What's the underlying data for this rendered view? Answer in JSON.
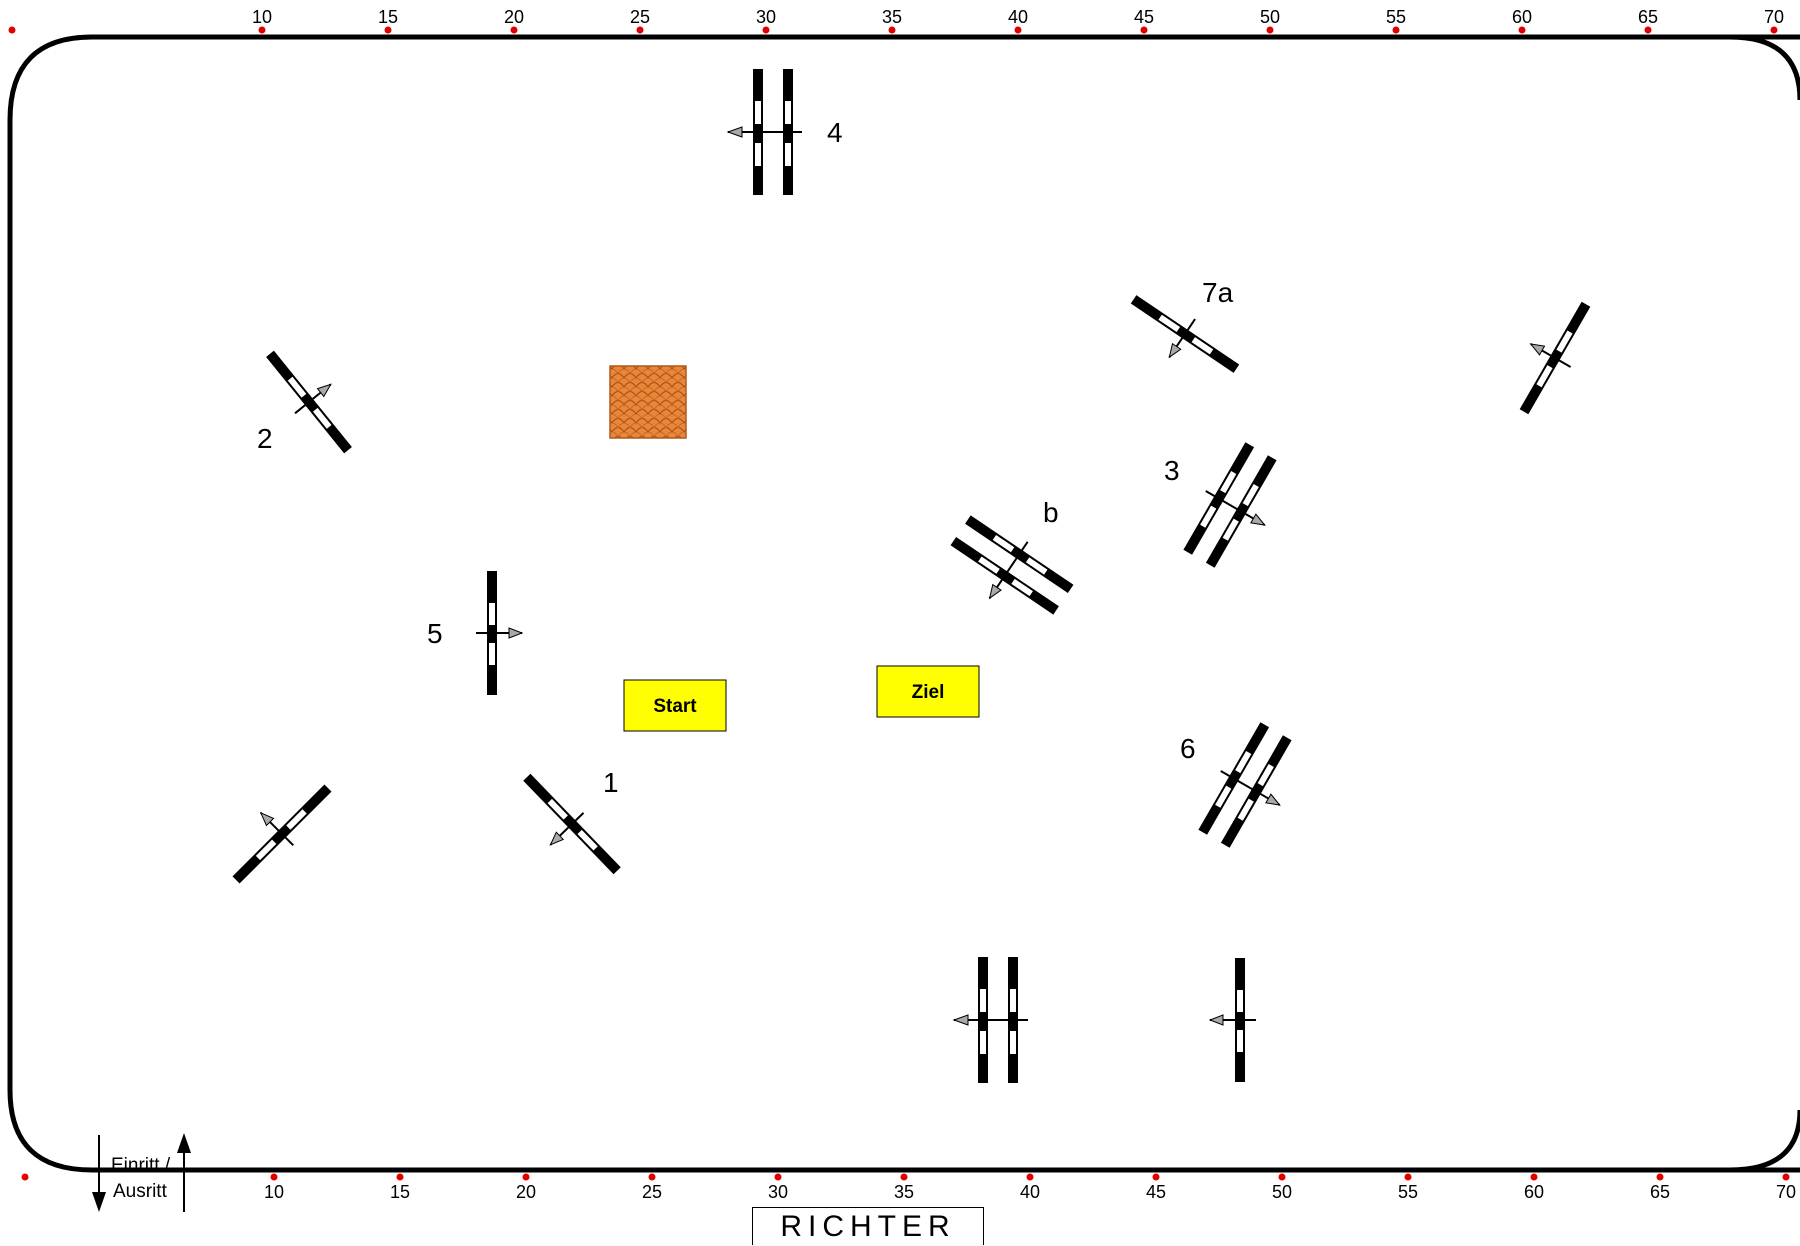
{
  "arena": {
    "ruler_ticks": [
      "10",
      "15",
      "20",
      "25",
      "30",
      "35",
      "40",
      "45",
      "50",
      "55",
      "60",
      "65",
      "70"
    ]
  },
  "fences": {
    "fence_1": "1",
    "fence_2": "2",
    "fence_3": "3",
    "fence_4": "4",
    "fence_5": "5",
    "fence_6": "6",
    "fence_7a": "7a",
    "fence_b": "b"
  },
  "start_box": {
    "label": "Start"
  },
  "finish_box": {
    "label": "Ziel"
  },
  "gate": {
    "entry_label": "Einritt /",
    "exit_label": "Ausritt"
  },
  "judge": {
    "label": "RICHTER"
  },
  "colors": {
    "ruler_dot": "#e00000",
    "box_fill": "#ffff00",
    "water_fill": "#d2691e",
    "arrow_fill": "#a9a9a9"
  }
}
